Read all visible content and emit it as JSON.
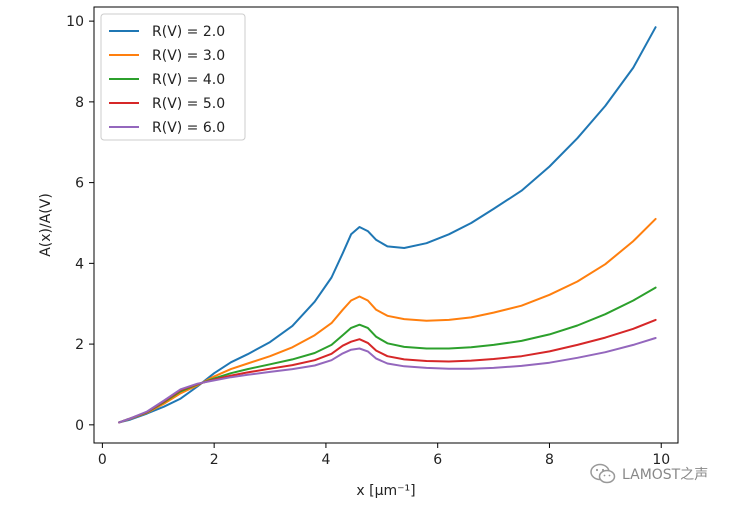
{
  "chart_data": {
    "type": "line",
    "title": "",
    "xlabel": "x [μm⁻¹]",
    "ylabel": "A(x)/A(V)",
    "xlim": [
      -0.15,
      10.3
    ],
    "ylim": [
      -0.45,
      10.35
    ],
    "xticks": [
      0,
      2,
      4,
      6,
      8,
      10
    ],
    "xtick_labels": [
      "0",
      "2",
      "4",
      "6",
      "8",
      "10"
    ],
    "yticks": [
      0,
      2,
      4,
      6,
      8,
      10
    ],
    "ytick_labels": [
      "0",
      "2",
      "4",
      "6",
      "8",
      "10"
    ],
    "grid": false,
    "legend_position": "top-left",
    "x": [
      0.3,
      0.5,
      0.8,
      1.1,
      1.4,
      1.7,
      2.0,
      2.3,
      2.6,
      3.0,
      3.4,
      3.8,
      4.1,
      4.3,
      4.45,
      4.6,
      4.75,
      4.9,
      5.1,
      5.4,
      5.8,
      6.2,
      6.6,
      7.0,
      7.5,
      8.0,
      8.5,
      9.0,
      9.5,
      9.9
    ],
    "series": [
      {
        "name": "R(V) = 2.0",
        "color": "#1f77b4",
        "values": [
          0.06,
          0.13,
          0.28,
          0.45,
          0.65,
          0.95,
          1.28,
          1.55,
          1.75,
          2.05,
          2.45,
          3.05,
          3.65,
          4.25,
          4.72,
          4.9,
          4.8,
          4.58,
          4.42,
          4.38,
          4.5,
          4.72,
          5.0,
          5.35,
          5.8,
          6.4,
          7.1,
          7.9,
          8.85,
          9.85
        ]
      },
      {
        "name": "R(V) = 3.0",
        "color": "#ff7f0e",
        "values": [
          0.06,
          0.15,
          0.3,
          0.52,
          0.78,
          0.98,
          1.2,
          1.38,
          1.52,
          1.7,
          1.92,
          2.22,
          2.52,
          2.85,
          3.08,
          3.18,
          3.08,
          2.85,
          2.7,
          2.62,
          2.58,
          2.6,
          2.66,
          2.78,
          2.95,
          3.22,
          3.55,
          3.98,
          4.55,
          5.1
        ]
      },
      {
        "name": "R(V) = 4.0",
        "color": "#2ca02c",
        "values": [
          0.06,
          0.16,
          0.31,
          0.56,
          0.83,
          1.0,
          1.15,
          1.28,
          1.38,
          1.5,
          1.62,
          1.78,
          1.98,
          2.22,
          2.4,
          2.48,
          2.4,
          2.18,
          2.02,
          1.93,
          1.89,
          1.89,
          1.92,
          1.98,
          2.08,
          2.24,
          2.46,
          2.74,
          3.08,
          3.4
        ]
      },
      {
        "name": "R(V) = 5.0",
        "color": "#d62728",
        "values": [
          0.06,
          0.16,
          0.32,
          0.58,
          0.86,
          1.01,
          1.12,
          1.22,
          1.3,
          1.39,
          1.48,
          1.6,
          1.76,
          1.96,
          2.06,
          2.12,
          2.03,
          1.84,
          1.7,
          1.62,
          1.58,
          1.57,
          1.59,
          1.63,
          1.7,
          1.82,
          1.98,
          2.16,
          2.38,
          2.6
        ]
      },
      {
        "name": "R(V) = 6.0",
        "color": "#9467bd",
        "values": [
          0.06,
          0.16,
          0.33,
          0.6,
          0.88,
          1.02,
          1.1,
          1.18,
          1.24,
          1.31,
          1.38,
          1.47,
          1.6,
          1.77,
          1.86,
          1.89,
          1.82,
          1.64,
          1.52,
          1.45,
          1.41,
          1.39,
          1.39,
          1.41,
          1.46,
          1.54,
          1.66,
          1.8,
          1.98,
          2.15
        ]
      }
    ]
  },
  "watermark": {
    "text": "LAMOST之声",
    "icon": "wechat-icon"
  }
}
